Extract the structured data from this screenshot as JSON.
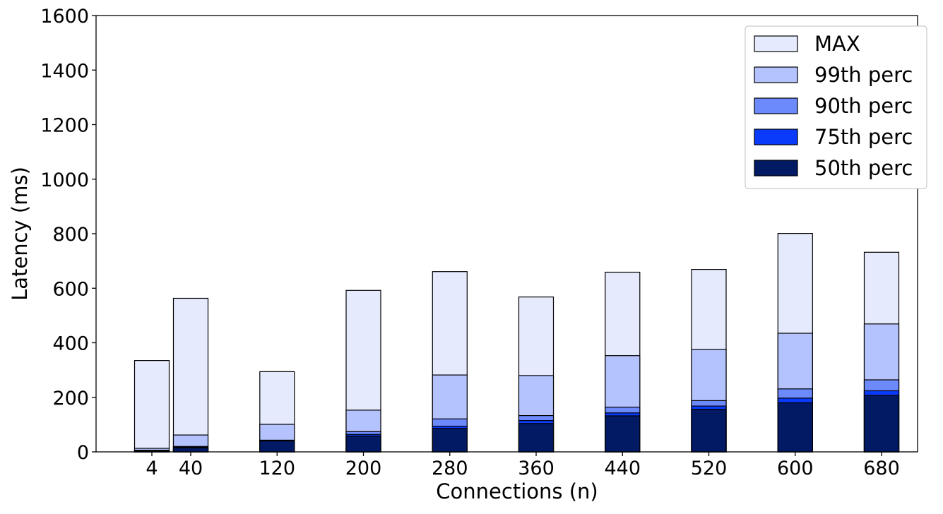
{
  "chart_data": {
    "type": "bar",
    "stacked": false,
    "overlapping": true,
    "xlabel": "Connections (n)",
    "ylabel": "Latency (ms)",
    "ylim": [
      0,
      1600
    ],
    "yticks": [
      0,
      200,
      400,
      600,
      800,
      1000,
      1200,
      1400,
      1600
    ],
    "categories": [
      "4",
      "40",
      "120",
      "200",
      "280",
      "360",
      "440",
      "520",
      "600",
      "680"
    ],
    "x": [
      4,
      40,
      120,
      200,
      280,
      360,
      440,
      520,
      600,
      680
    ],
    "grid": false,
    "legend_position": "top-right",
    "series": [
      {
        "name": "MAX",
        "color": "#e5eafd",
        "values": [
          335,
          563,
          294,
          592,
          661,
          568,
          659,
          669,
          801,
          732
        ]
      },
      {
        "name": "99th perc",
        "color": "#b4c3fd",
        "values": [
          13,
          62,
          101,
          153,
          282,
          280,
          353,
          376,
          435,
          469
        ]
      },
      {
        "name": "90th perc",
        "color": "#6c8afc",
        "values": [
          6,
          20,
          43,
          74,
          121,
          133,
          164,
          188,
          231,
          264
        ]
      },
      {
        "name": "75th perc",
        "color": "#0a3afa",
        "values": [
          4,
          17,
          42,
          64,
          94,
          115,
          143,
          168,
          197,
          224
        ]
      },
      {
        "name": "50th perc",
        "color": "#021963",
        "values": [
          3,
          15,
          40,
          58,
          86,
          104,
          132,
          156,
          180,
          207
        ]
      }
    ]
  }
}
